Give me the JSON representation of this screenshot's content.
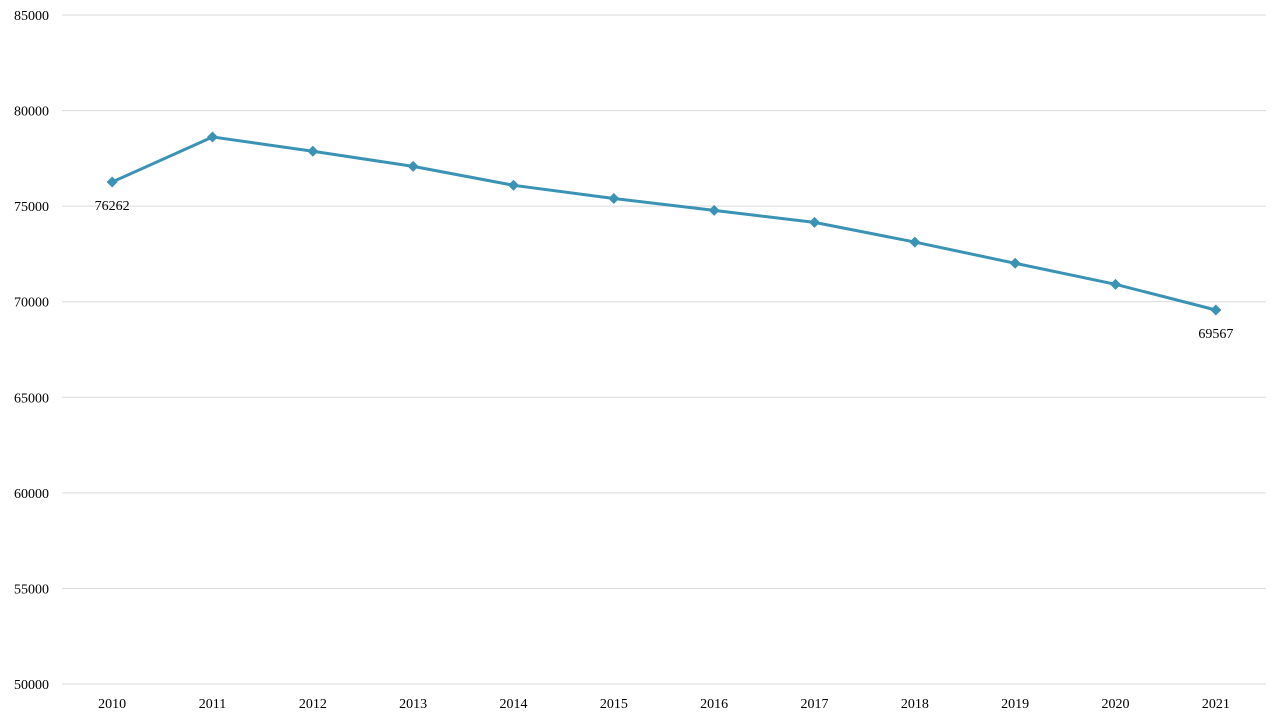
{
  "chart_data": {
    "type": "line",
    "title": "",
    "xlabel": "",
    "ylabel": "",
    "categories": [
      "2010",
      "2011",
      "2012",
      "2013",
      "2014",
      "2015",
      "2016",
      "2017",
      "2018",
      "2019",
      "2020",
      "2021"
    ],
    "series": [
      {
        "values": [
          76262,
          78620,
          77870,
          77080,
          76090,
          75400,
          74780,
          74150,
          73120,
          72010,
          70910,
          69567
        ],
        "color": "#3a93b5",
        "marker": "diamond"
      }
    ],
    "data_labels": [
      {
        "index": 0,
        "text": "76262",
        "placement": "below"
      },
      {
        "index": 11,
        "text": "69567",
        "placement": "below"
      }
    ],
    "ylim": [
      50000,
      85000
    ],
    "yticks": [
      50000,
      55000,
      60000,
      65000,
      70000,
      75000,
      80000,
      85000
    ],
    "grid": true,
    "legend": "none"
  }
}
